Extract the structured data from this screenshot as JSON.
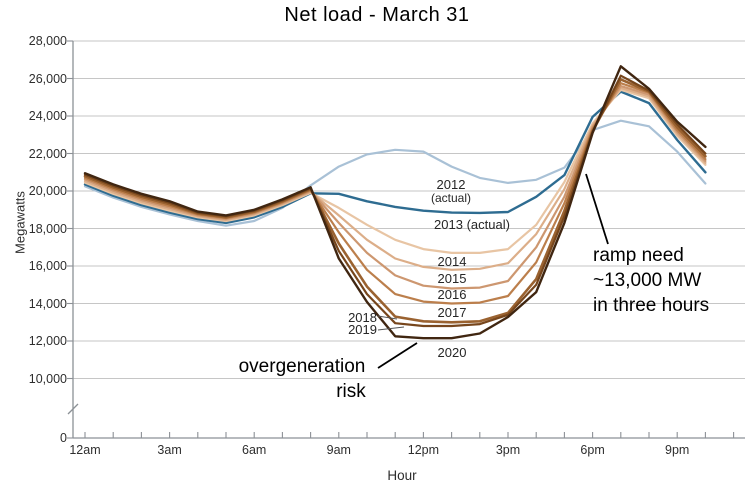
{
  "chart_data": {
    "type": "line",
    "title": "Net load - March 31",
    "xlabel": "Hour",
    "ylabel": "Megawatts",
    "x_unit": "hour of day, 12am through 10pm",
    "x_hours": [
      0,
      1,
      2,
      3,
      4,
      5,
      6,
      7,
      8,
      9,
      10,
      11,
      12,
      13,
      14,
      15,
      16,
      17,
      18,
      19,
      20,
      21,
      22
    ],
    "x_tick_labels": [
      {
        "hour": 0,
        "label": "12am"
      },
      {
        "hour": 3,
        "label": "3am"
      },
      {
        "hour": 6,
        "label": "6am"
      },
      {
        "hour": 9,
        "label": "9am"
      },
      {
        "hour": 12,
        "label": "12pm"
      },
      {
        "hour": 15,
        "label": "3pm"
      },
      {
        "hour": 18,
        "label": "6pm"
      },
      {
        "hour": 21,
        "label": "9pm"
      }
    ],
    "y_ticks": [
      {
        "v": 28000,
        "label": "28,000"
      },
      {
        "v": 26000,
        "label": "26,000"
      },
      {
        "v": 24000,
        "label": "24,000"
      },
      {
        "v": 22000,
        "label": "22,000"
      },
      {
        "v": 20000,
        "label": "20,000"
      },
      {
        "v": 18000,
        "label": "18,000"
      },
      {
        "v": 16000,
        "label": "16,000"
      },
      {
        "v": 14000,
        "label": "14,000"
      },
      {
        "v": 12000,
        "label": "12,000"
      },
      {
        "v": 10000,
        "label": "10,000"
      },
      {
        "v": 0,
        "label": "0"
      }
    ],
    "axis_break_between": [
      0,
      10000
    ],
    "grid": true,
    "legend_position": "inline-labels",
    "series": [
      {
        "name": "2012",
        "label": "2012",
        "sublabel": "(actual)",
        "color": "#a9c1d6",
        "width": 2.2,
        "values": [
          20250,
          19650,
          19150,
          18750,
          18400,
          18150,
          18400,
          19100,
          20300,
          21300,
          21950,
          22200,
          22100,
          21300,
          20700,
          20430,
          20600,
          21250,
          23250,
          23750,
          23450,
          22100,
          20400
        ]
      },
      {
        "name": "2013",
        "label": "2013 (actual)",
        "color": "#2e6c91",
        "width": 2.4,
        "values": [
          20350,
          19750,
          19250,
          18850,
          18500,
          18300,
          18600,
          19150,
          19880,
          19850,
          19450,
          19150,
          18950,
          18850,
          18830,
          18880,
          19690,
          20850,
          23950,
          25300,
          24690,
          22720,
          21000
        ]
      },
      {
        "name": "2014",
        "label": "2014",
        "color": "#e8c5a4",
        "width": 2.2,
        "values": [
          20450,
          19850,
          19350,
          18950,
          18600,
          18400,
          18700,
          19250,
          19900,
          19100,
          18200,
          17400,
          16900,
          16700,
          16700,
          16900,
          18200,
          20480,
          23600,
          25400,
          24950,
          22950,
          21400
        ]
      },
      {
        "name": "2015",
        "label": "2015",
        "color": "#dcae89",
        "width": 2.2,
        "values": [
          20530,
          19930,
          19430,
          19030,
          18650,
          18450,
          18750,
          19300,
          19950,
          18700,
          17400,
          16400,
          15950,
          15800,
          15850,
          16150,
          17700,
          20100,
          23500,
          25500,
          25050,
          23050,
          21500
        ]
      },
      {
        "name": "2016",
        "label": "2016",
        "color": "#cd9770",
        "width": 2.2,
        "values": [
          20620,
          20020,
          19520,
          19120,
          18700,
          18500,
          18800,
          19350,
          20000,
          18300,
          16700,
          15500,
          14950,
          14800,
          14850,
          15200,
          17000,
          19700,
          23400,
          25600,
          25150,
          23150,
          21600
        ]
      },
      {
        "name": "2017",
        "label": "2017",
        "color": "#bc7f4c",
        "width": 2.2,
        "values": [
          20700,
          20100,
          19600,
          19200,
          18750,
          18550,
          18850,
          19400,
          20050,
          17800,
          15800,
          14500,
          14100,
          14000,
          14050,
          14400,
          16200,
          19350,
          23300,
          25750,
          25250,
          23250,
          21700
        ]
      },
      {
        "name": "2018",
        "label": "2018",
        "color": "#9a6230",
        "width": 2.6,
        "values": [
          20790,
          20190,
          19690,
          19290,
          18800,
          18600,
          18900,
          19450,
          20100,
          17200,
          14900,
          13300,
          13050,
          13000,
          13050,
          13500,
          15300,
          18950,
          23200,
          25950,
          25300,
          23400,
          21850
        ]
      },
      {
        "name": "2019",
        "label": "2019",
        "color": "#77461c",
        "width": 2.2,
        "values": [
          20870,
          20270,
          19770,
          19370,
          18850,
          18650,
          18950,
          19500,
          20150,
          16800,
          14500,
          12950,
          12800,
          12800,
          12900,
          13400,
          15000,
          18650,
          23150,
          26150,
          25350,
          23550,
          22000
        ]
      },
      {
        "name": "2020",
        "label": "2020",
        "color": "#402611",
        "width": 2.4,
        "values": [
          20950,
          20350,
          19850,
          19450,
          18900,
          18700,
          19000,
          19550,
          20200,
          16400,
          14080,
          12250,
          12150,
          12150,
          12400,
          13280,
          14610,
          18300,
          23100,
          26650,
          25450,
          23700,
          22350
        ]
      }
    ],
    "annotations": {
      "overgen_line1": "overgeneration",
      "overgen_line2": "risk",
      "ramp_line1": "ramp need",
      "ramp_line2": "~13,000 MW",
      "ramp_line3": "in three hours"
    }
  }
}
